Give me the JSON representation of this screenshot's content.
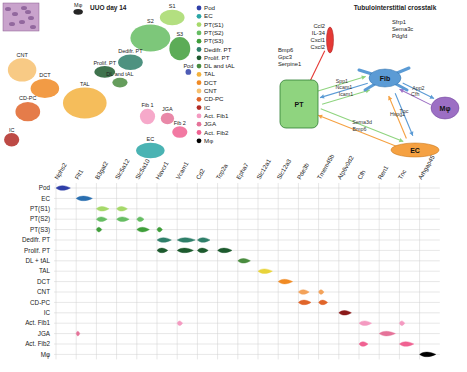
{
  "umap": {
    "title": "UUO day 14",
    "xlim": [
      0,
      200
    ],
    "ylim": [
      0,
      165
    ],
    "clusters": [
      {
        "name": "Pod",
        "label": "Pod",
        "color": "#2f3fa8",
        "x": 193,
        "y": 96,
        "rx": 3,
        "ry": 3
      },
      {
        "name": "EC",
        "label": "EC",
        "color": "#2aa6a6",
        "x": 153,
        "y": 15,
        "rx": 15,
        "ry": 8
      },
      {
        "name": "PT(S1)",
        "label": "S1",
        "color": "#a6d96a",
        "x": 176,
        "y": 152,
        "rx": 13,
        "ry": 8
      },
      {
        "name": "PT(S2)",
        "label": "S2",
        "color": "#66bd63",
        "x": 153,
        "y": 131,
        "rx": 21,
        "ry": 14
      },
      {
        "name": "PT(S3)",
        "label": "S3",
        "color": "#3f9e3a",
        "x": 184,
        "y": 120,
        "rx": 11,
        "ry": 12
      },
      {
        "name": "Dedifr. PT",
        "label": "Dedifr. PT",
        "color": "#2f7f6a",
        "x": 132,
        "y": 106,
        "rx": 13,
        "ry": 8
      },
      {
        "name": "Prolif. PT",
        "label": "Prolif. PT",
        "color": "#1d5a2e",
        "x": 105,
        "y": 96,
        "rx": 11,
        "ry": 6
      },
      {
        "name": "DL and tAL",
        "label": "DL and tAL",
        "color": "#4a8c3f",
        "x": 121,
        "y": 85,
        "rx": 8,
        "ry": 5
      },
      {
        "name": "TAL",
        "label": "TAL",
        "color": "#f3b23e",
        "x": 84,
        "y": 64,
        "rx": 23,
        "ry": 16
      },
      {
        "name": "DCT",
        "label": "DCT",
        "color": "#f08a24",
        "x": 42,
        "y": 79,
        "rx": 15,
        "ry": 10
      },
      {
        "name": "CNT",
        "label": "CNT",
        "color": "#f7c170",
        "x": 18,
        "y": 98,
        "rx": 15,
        "ry": 12
      },
      {
        "name": "CD-PC",
        "label": "CD-PC",
        "color": "#e0652a",
        "x": 24,
        "y": 55,
        "rx": 13,
        "ry": 10
      },
      {
        "name": "IC",
        "label": "IC",
        "color": "#b22a25",
        "x": 7,
        "y": 26,
        "rx": 8,
        "ry": 7
      },
      {
        "name": "Act. Fib1",
        "label": "Fib 1",
        "color": "#f49ac1",
        "x": 150,
        "y": 50,
        "rx": 8,
        "ry": 8
      },
      {
        "name": "JGA",
        "label": "JGA",
        "color": "#e57399",
        "x": 171,
        "y": 48,
        "rx": 7,
        "ry": 6
      },
      {
        "name": "Act. Fib2",
        "label": "Fib 2",
        "color": "#f06292",
        "x": 184,
        "y": 34,
        "rx": 8,
        "ry": 6
      },
      {
        "name": "Mφ",
        "label": "Mφ",
        "color": "#000000",
        "x": 77,
        "y": 158,
        "rx": 5,
        "ry": 3
      }
    ]
  },
  "diagram": {
    "title": "Tubulointerstitial crosstalk",
    "nodes": [
      {
        "label": "PT",
        "color": "#8fd47f",
        "genes": [
          "Bmp6",
          "Gpc3",
          "Serpine1"
        ]
      },
      {
        "color": "#e53935",
        "genes": [
          "Ccl2",
          "IL-34",
          "Cxcl1",
          "Cxcl2"
        ]
      },
      {
        "label": "Fib",
        "color": "#5b9bd5",
        "genes": [
          "Sfrp1",
          "Sema3c",
          "Pdgfd"
        ]
      },
      {
        "label": "Mφ",
        "color": "#9c6fc4"
      },
      {
        "label": "EC",
        "color": "#f5a142"
      }
    ],
    "edges": [
      {
        "from": 0,
        "to": 2,
        "label": "Spp1"
      },
      {
        "from": 2,
        "to": 0,
        "label": "Ncam1"
      },
      {
        "from": 0,
        "to": 2,
        "label": "Icam1"
      },
      {
        "from": 2,
        "to": 3,
        "label": "App2"
      },
      {
        "from": 3,
        "to": 2,
        "label": "Cfh"
      },
      {
        "from": 2,
        "to": 4,
        "label": "Tnc"
      },
      {
        "from": 4,
        "to": 2,
        "label": "Hspg2"
      },
      {
        "from": 0,
        "to": 4,
        "label": "Sema3d"
      },
      {
        "from": 4,
        "to": 0,
        "label": "Bmp6"
      },
      {
        "from": 1,
        "to": 0
      }
    ]
  },
  "chart_data": {
    "type": "violin",
    "orientation": "horizontal",
    "xlim": [
      0,
      1
    ],
    "categories": [
      "Pod",
      "EC",
      "PT(S1)",
      "PT(S2)",
      "PT(S3)",
      "Dedifr. PT",
      "Prolif. PT",
      "DL + tAL",
      "TAL",
      "DCT",
      "CNT",
      "CD-PC",
      "IC",
      "Act. Fib1",
      "JGA",
      "Act. Fib2",
      "Mφ"
    ],
    "colors": [
      "#2f3fa8",
      "#2a6fb0",
      "#a6d96a",
      "#66bd63",
      "#3f9e3a",
      "#2f7f6a",
      "#1d5a2e",
      "#4a8c3f",
      "#e8d33a",
      "#f08a24",
      "#f3a25a",
      "#e0652a",
      "#8b1a1a",
      "#f49ac1",
      "#e57399",
      "#f06292",
      "#000000"
    ],
    "series": [
      {
        "name": "Nphs2",
        "values": [
          0.8,
          0,
          0,
          0,
          0,
          0,
          0,
          0,
          0,
          0,
          0,
          0,
          0,
          0,
          0,
          0,
          0
        ]
      },
      {
        "name": "Flt1",
        "values": [
          0,
          0.9,
          0,
          0,
          0,
          0,
          0,
          0,
          0,
          0,
          0,
          0,
          0,
          0,
          0.2,
          0,
          0
        ]
      },
      {
        "name": "B3gat2",
        "values": [
          0,
          0,
          0.7,
          0.6,
          0.3,
          0,
          0,
          0,
          0,
          0,
          0,
          0,
          0,
          0,
          0,
          0,
          0
        ]
      },
      {
        "name": "Slc5a12",
        "values": [
          0,
          0,
          0.6,
          0.7,
          0,
          0,
          0,
          0,
          0,
          0,
          0,
          0,
          0,
          0,
          0,
          0,
          0
        ]
      },
      {
        "name": "Slc5a10",
        "values": [
          0,
          0,
          0,
          0.4,
          0.7,
          0,
          0,
          0,
          0,
          0,
          0,
          0,
          0,
          0,
          0,
          0,
          0
        ]
      },
      {
        "name": "Havcr1",
        "values": [
          0,
          0,
          0,
          0,
          0.3,
          0.8,
          0.6,
          0,
          0,
          0,
          0,
          0,
          0,
          0,
          0,
          0,
          0
        ]
      },
      {
        "name": "Vcam1",
        "values": [
          0,
          0,
          0,
          0,
          0,
          1,
          0.9,
          0,
          0,
          0,
          0,
          0,
          0,
          0.3,
          0,
          0,
          0
        ]
      },
      {
        "name": "Cd2",
        "values": [
          0,
          0,
          0,
          0,
          0,
          0.7,
          0.6,
          0,
          0,
          0,
          0,
          0,
          0,
          0,
          0,
          0,
          0
        ]
      },
      {
        "name": "Top2a",
        "values": [
          0,
          0,
          0,
          0,
          0,
          0,
          0.8,
          0,
          0,
          0,
          0,
          0,
          0,
          0,
          0,
          0,
          0
        ]
      },
      {
        "name": "Epha7",
        "values": [
          0,
          0,
          0,
          0,
          0,
          0,
          0,
          0.7,
          0,
          0,
          0,
          0,
          0,
          0,
          0,
          0,
          0
        ]
      },
      {
        "name": "Slc12a1",
        "values": [
          0,
          0,
          0,
          0,
          0,
          0,
          0,
          0,
          0.8,
          0,
          0,
          0,
          0,
          0,
          0,
          0,
          0
        ]
      },
      {
        "name": "Slc12a3",
        "values": [
          0,
          0,
          0,
          0,
          0,
          0,
          0,
          0,
          0,
          0.8,
          0,
          0,
          0,
          0,
          0,
          0,
          0
        ]
      },
      {
        "name": "Pde3b",
        "values": [
          0,
          0,
          0,
          0,
          0,
          0,
          0,
          0,
          0,
          0,
          0.6,
          0.7,
          0,
          0,
          0,
          0,
          0
        ]
      },
      {
        "name": "Tmem45b",
        "values": [
          0,
          0,
          0,
          0,
          0,
          0,
          0,
          0,
          0,
          0,
          0.3,
          0.5,
          0,
          0,
          0,
          0,
          0
        ]
      },
      {
        "name": "Atp6v0d2",
        "values": [
          0,
          0,
          0,
          0,
          0,
          0,
          0,
          0,
          0,
          0,
          0,
          0,
          0.7,
          0,
          0,
          0,
          0
        ]
      },
      {
        "name": "Cfh",
        "values": [
          0,
          0,
          0,
          0,
          0,
          0,
          0,
          0,
          0,
          0,
          0,
          0,
          0,
          0.7,
          0,
          0.5,
          0
        ]
      },
      {
        "name": "Ren1",
        "values": [
          0,
          0,
          0,
          0,
          0,
          0,
          0,
          0,
          0,
          0,
          0,
          0,
          0,
          0,
          0.9,
          0,
          0
        ]
      },
      {
        "name": "Tnc",
        "values": [
          0,
          0,
          0,
          0,
          0,
          0,
          0,
          0,
          0,
          0,
          0,
          0,
          0,
          0.3,
          0,
          0.8,
          0
        ]
      },
      {
        "name": "Arhgap45",
        "values": [
          0,
          0,
          0,
          0,
          0,
          0,
          0,
          0,
          0,
          0,
          0,
          0,
          0,
          0,
          0,
          0,
          0.9
        ]
      }
    ]
  }
}
